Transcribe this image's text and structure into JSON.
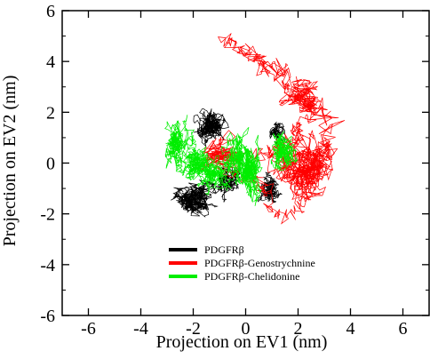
{
  "chart_data": {
    "type": "scatter",
    "xlabel": "Projection on EV1 (nm)",
    "ylabel": "Projection on EV2 (nm)",
    "xlim": [
      -7,
      7
    ],
    "ylim": [
      -6,
      6
    ],
    "xticks": [
      -6,
      -4,
      -2,
      0,
      2,
      4,
      6
    ],
    "yticks": [
      -6,
      -4,
      -2,
      0,
      2,
      4,
      6
    ],
    "xticklabels": [
      "-6",
      "-4",
      "-2",
      "0",
      "2",
      "4",
      "6"
    ],
    "yticklabels": [
      "-6",
      "-4",
      "-2",
      "0",
      "2",
      "4",
      "6"
    ],
    "grid": false,
    "legend_position": "lower-left",
    "series": [
      {
        "name": "PDGFRβ",
        "color": "#000000",
        "clusters": [
          {
            "center": [
              -1.3,
              1.4
            ],
            "spread": [
              0.35,
              0.55
            ],
            "weight": 1.0
          },
          {
            "center": [
              -1.9,
              -1.4
            ],
            "spread": [
              0.55,
              0.45
            ],
            "weight": 1.2
          },
          {
            "center": [
              -0.6,
              -0.6
            ],
            "spread": [
              0.35,
              0.4
            ],
            "weight": 0.6
          },
          {
            "center": [
              0.9,
              -1.0
            ],
            "spread": [
              0.3,
              0.35
            ],
            "weight": 0.6
          },
          {
            "center": [
              1.2,
              1.2
            ],
            "spread": [
              0.2,
              0.35
            ],
            "weight": 0.4
          }
        ]
      },
      {
        "name": "PDGFRβ-Genostrychnine",
        "color": "#ff0000",
        "path": [
          [
            -1.2,
            0.4
          ],
          [
            -0.3,
            0.2
          ],
          [
            0.8,
            0.4
          ],
          [
            1.4,
            0.6
          ],
          [
            1.8,
            1.2
          ],
          [
            2.2,
            1.6
          ],
          [
            2.6,
            2.4
          ],
          [
            2.0,
            3.2
          ],
          [
            1.2,
            3.8
          ],
          [
            0.5,
            4.0
          ],
          [
            -0.8,
            4.9
          ],
          [
            0.2,
            4.4
          ],
          [
            0.8,
            3.6
          ],
          [
            1.6,
            3.0
          ],
          [
            2.4,
            2.2
          ],
          [
            3.2,
            1.8
          ],
          [
            3.0,
            0.4
          ],
          [
            2.6,
            -1.0
          ],
          [
            2.0,
            -1.8
          ],
          [
            1.2,
            -2.2
          ],
          [
            0.7,
            -1.0
          ],
          [
            0.2,
            -0.4
          ],
          [
            -1.0,
            -0.2
          ],
          [
            -1.6,
            0.5
          ],
          [
            -0.6,
            1.0
          ]
        ],
        "clusters": [
          {
            "center": [
              2.3,
              -0.3
            ],
            "spread": [
              0.8,
              0.9
            ],
            "weight": 1.3
          },
          {
            "center": [
              2.2,
              2.6
            ],
            "spread": [
              0.6,
              0.4
            ],
            "weight": 0.5
          },
          {
            "center": [
              -0.8,
              0.3
            ],
            "spread": [
              0.5,
              0.3
            ],
            "weight": 0.5
          }
        ]
      },
      {
        "name": "PDGFRβ-Chelidonine",
        "color": "#00ee00",
        "clusters": [
          {
            "center": [
              -2.6,
              0.6
            ],
            "spread": [
              0.35,
              0.6
            ],
            "weight": 0.8
          },
          {
            "center": [
              -1.9,
              0.1
            ],
            "spread": [
              0.4,
              0.45
            ],
            "weight": 0.9
          },
          {
            "center": [
              -1.1,
              -0.5
            ],
            "spread": [
              0.35,
              0.4
            ],
            "weight": 0.8
          },
          {
            "center": [
              -0.4,
              0.4
            ],
            "spread": [
              0.3,
              0.6
            ],
            "weight": 0.7
          },
          {
            "center": [
              0.1,
              -0.3
            ],
            "spread": [
              0.3,
              0.8
            ],
            "weight": 1.0
          },
          {
            "center": [
              1.5,
              0.4
            ],
            "spread": [
              0.3,
              0.55
            ],
            "weight": 0.8
          }
        ]
      }
    ]
  }
}
